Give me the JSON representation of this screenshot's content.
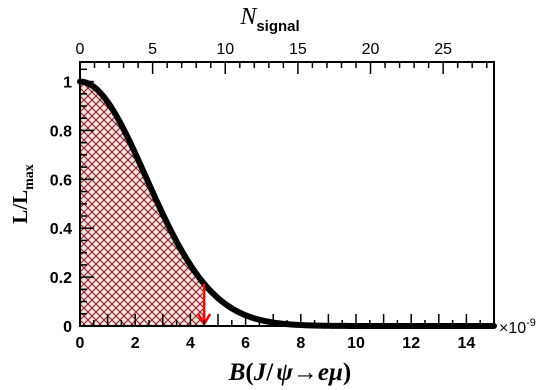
{
  "chart_data": {
    "type": "line",
    "xlabel": "B(J/ψ→eμ)",
    "xlabel_parts": {
      "B": "B",
      "paren_open": "(",
      "J": "J",
      "slash": "/",
      "psi": "ψ",
      "arrow": "→",
      "e": "e",
      "mu": "μ",
      "paren_close": ")"
    },
    "ylabel": "L/L",
    "ylabel_sub": "max",
    "top_axis_label": "N",
    "top_axis_sub": "signal",
    "x_multiplier": "×10",
    "x_multiplier_exp": "-9",
    "xlim": [
      0,
      15
    ],
    "ylim": [
      0,
      1.08
    ],
    "top_xlim": [
      0,
      28.5
    ],
    "x_ticks": [
      "0",
      "2",
      "4",
      "6",
      "8",
      "10",
      "12",
      "14"
    ],
    "y_ticks": [
      "0",
      "0.2",
      "0.4",
      "0.6",
      "0.8",
      "1"
    ],
    "top_ticks": [
      "0",
      "5",
      "10",
      "15",
      "20",
      "25"
    ],
    "curve_form": "gaussian",
    "curve_sigma": 2.4,
    "series": [
      {
        "x": [
          0,
          0.5,
          1,
          1.5,
          2,
          2.5,
          3,
          3.5,
          4,
          4.5,
          5,
          5.5,
          6,
          6.5,
          7,
          7.5,
          8,
          8.5,
          9,
          10,
          11,
          12,
          13,
          14,
          15
        ],
        "y": [
          1.0,
          0.979,
          0.917,
          0.823,
          0.707,
          0.581,
          0.458,
          0.346,
          0.249,
          0.172,
          0.114,
          0.072,
          0.044,
          0.026,
          0.014,
          0.008,
          0.004,
          0.002,
          0.001,
          0.0,
          0.0,
          0.0,
          0.0,
          0.0,
          0.0
        ]
      }
    ],
    "upper_limit_x": 4.5,
    "shaded_region": [
      0,
      4.5
    ],
    "colors": {
      "curve": "#000000",
      "hatch": "#8b1a1a",
      "fill": "#efe0e0",
      "arrow": "#ff0000"
    }
  }
}
